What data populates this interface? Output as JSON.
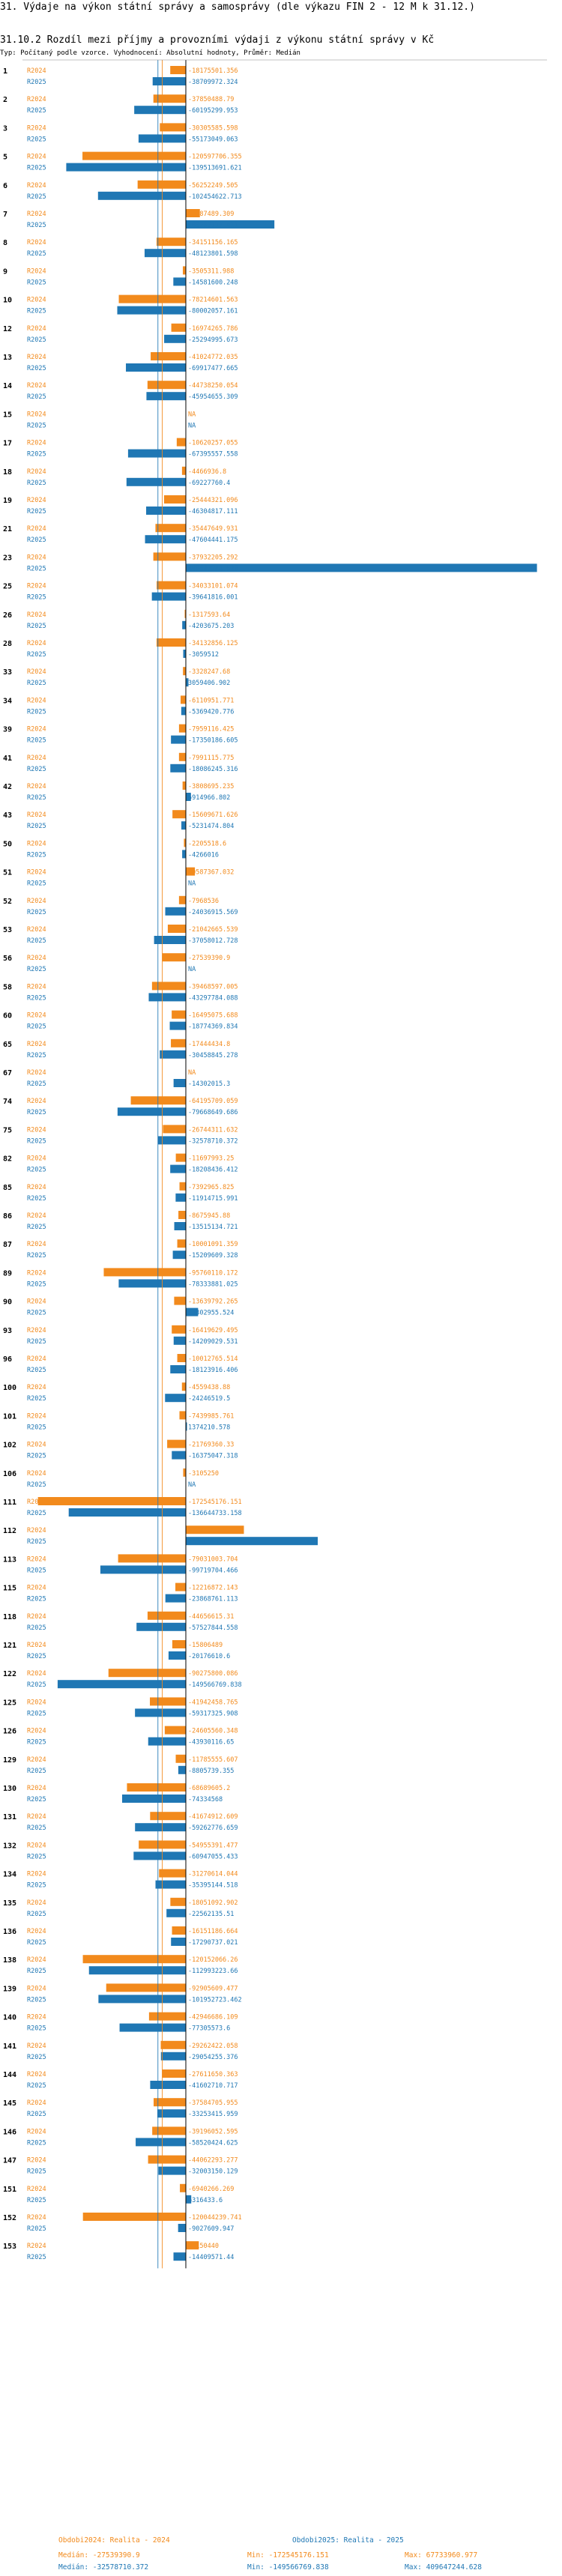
{
  "header": {
    "title": "31. Výdaje na výkon státní správy a samosprávy (dle výkazu FIN 2 - 12 M k 31.12.)",
    "subtitle": "31.10.2 Rozdíl mezi příjmy a provozními výdaji z výkonu státní správy v Kč",
    "note": "Typ: Počítaný podle vzorce. Vyhodnocení: Absolutní hodnoty, Průměr: Medián"
  },
  "colors": {
    "c2024": "#f28a1c",
    "c2025": "#1f77b4",
    "axis": "#000000",
    "avg24": "#f28a1c",
    "avg25": "#1f77b4"
  },
  "footer": {
    "legend_2024": "Obdobi2024: Realita - 2024",
    "legend_2025": "Obdobi2025: Realita - 2025",
    "median_2024": "Medián: -27539390.9",
    "median_2025": "Medián: -32578710.372",
    "min_2024": "Min: -172545176.151",
    "min_2025": "Min: -149566769.838",
    "max_2024": "Max: 67733960.977",
    "max_2025": "Max: 409647244.628"
  },
  "chart_data": {
    "type": "bar",
    "orientation": "horizontal",
    "title": "31.10.2 Rozdíl mezi příjmy a provozními výdaji z výkonu státní správy v Kč",
    "xlim": [
      -175000000,
      410000000
    ],
    "median_2024": -27539390.9,
    "median_2025": -32578710.372,
    "series_names": [
      "R2024",
      "R2025"
    ],
    "groups": [
      {
        "id": "1",
        "v2024": "-18175501.356",
        "v2025": "-38709972.324"
      },
      {
        "id": "2",
        "v2024": "-37850488.79",
        "v2025": "-60195299.953"
      },
      {
        "id": "3",
        "v2024": "-30305585.598",
        "v2025": "-55173049.063"
      },
      {
        "id": "5",
        "v2024": "-120597706.355",
        "v2025": "-139513691.621"
      },
      {
        "id": "6",
        "v2024": "-56252249.505",
        "v2025": "-102454622.713"
      },
      {
        "id": "7",
        "v2024": "16387489.309",
        "v2025": "103297717.411"
      },
      {
        "id": "8",
        "v2024": "-34151156.165",
        "v2025": "-48123801.598"
      },
      {
        "id": "9",
        "v2024": "-3505311.988",
        "v2025": "-14581600.248"
      },
      {
        "id": "10",
        "v2024": "-78214601.563",
        "v2025": "-80002057.161"
      },
      {
        "id": "12",
        "v2024": "-16974265.786",
        "v2025": "-25294995.673"
      },
      {
        "id": "13",
        "v2024": "-41024772.035",
        "v2025": "-69917477.665"
      },
      {
        "id": "14",
        "v2024": "-44738250.054",
        "v2025": "-45954655.309"
      },
      {
        "id": "15",
        "v2024": "NA",
        "v2025": "NA"
      },
      {
        "id": "17",
        "v2024": "-10620257.055",
        "v2025": "-67395557.558"
      },
      {
        "id": "18",
        "v2024": "-4466936.8",
        "v2025": "-69227760.4"
      },
      {
        "id": "19",
        "v2024": "-25444321.096",
        "v2025": "-46304817.111"
      },
      {
        "id": "21",
        "v2024": "-35447649.931",
        "v2025": "-47604441.175"
      },
      {
        "id": "23",
        "v2024": "-37932205.292",
        "v2025": "409647244.628"
      },
      {
        "id": "25",
        "v2024": "-34033101.074",
        "v2025": "-39641816.001"
      },
      {
        "id": "26",
        "v2024": "-1317593.64",
        "v2025": "-4203675.203"
      },
      {
        "id": "28",
        "v2024": "-34132856.125",
        "v2025": "-3059512"
      },
      {
        "id": "33",
        "v2024": "-3328247.68",
        "v2025": "3059406.902"
      },
      {
        "id": "34",
        "v2024": "-6110951.771",
        "v2025": "-5369420.776"
      },
      {
        "id": "39",
        "v2024": "-7959116.425",
        "v2025": "-17350186.605"
      },
      {
        "id": "41",
        "v2024": "-7991115.775",
        "v2025": "-18086245.316"
      },
      {
        "id": "42",
        "v2024": "-3808695.235",
        "v2025": "5914966.802"
      },
      {
        "id": "43",
        "v2024": "-15609671.626",
        "v2025": "-5231474.804"
      },
      {
        "id": "50",
        "v2024": "-2205518.6",
        "v2025": "-4266016"
      },
      {
        "id": "51",
        "v2024": "10587367.032",
        "v2025": "NA"
      },
      {
        "id": "52",
        "v2024": "-7968536",
        "v2025": "-24036915.569"
      },
      {
        "id": "53",
        "v2024": "-21042665.539",
        "v2025": "-37058012.728"
      },
      {
        "id": "56",
        "v2024": "-27539390.9",
        "v2025": "NA"
      },
      {
        "id": "58",
        "v2024": "-39468597.005",
        "v2025": "-43297784.088"
      },
      {
        "id": "60",
        "v2024": "-16495075.688",
        "v2025": "-18774369.834"
      },
      {
        "id": "65",
        "v2024": "-17444434.8",
        "v2025": "-30458845.278"
      },
      {
        "id": "67",
        "v2024": "NA",
        "v2025": "-14302015.3"
      },
      {
        "id": "74",
        "v2024": "-64195709.059",
        "v2025": "-79668649.686"
      },
      {
        "id": "75",
        "v2024": "-26744311.632",
        "v2025": "-32578710.372"
      },
      {
        "id": "82",
        "v2024": "-11697993.25",
        "v2025": "-18208436.412"
      },
      {
        "id": "85",
        "v2024": "-7392965.825",
        "v2025": "-11914715.991"
      },
      {
        "id": "86",
        "v2024": "-8675945.88",
        "v2025": "-13515134.721"
      },
      {
        "id": "87",
        "v2024": "-10001091.359",
        "v2025": "-15209609.328"
      },
      {
        "id": "89",
        "v2024": "-95760110.172",
        "v2025": "-78333881.025"
      },
      {
        "id": "90",
        "v2024": "-13639792.265",
        "v2025": "14302955.524"
      },
      {
        "id": "93",
        "v2024": "-16419629.495",
        "v2025": "-14209029.531"
      },
      {
        "id": "96",
        "v2024": "-10012765.514",
        "v2025": "-18123916.406"
      },
      {
        "id": "100",
        "v2024": "-4559438.88",
        "v2025": "-24246519.5"
      },
      {
        "id": "101",
        "v2024": "-7439985.761",
        "v2025": "1374210.578"
      },
      {
        "id": "102",
        "v2024": "-21769360.33",
        "v2025": "-16375047.318"
      },
      {
        "id": "106",
        "v2024": "-3105250",
        "v2025": "NA"
      },
      {
        "id": "111",
        "v2024": "-172545176.151",
        "v2025": "-136644733.158"
      },
      {
        "id": "112",
        "v2024": "67733960.977",
        "v2025": "153906619"
      },
      {
        "id": "113",
        "v2024": "-79031003.704",
        "v2025": "-99719704.466"
      },
      {
        "id": "115",
        "v2024": "-12216872.143",
        "v2025": "-23868761.113"
      },
      {
        "id": "118",
        "v2024": "-44656615.31",
        "v2025": "-57527844.558"
      },
      {
        "id": "121",
        "v2024": "-15806489",
        "v2025": "-20176610.6"
      },
      {
        "id": "122",
        "v2024": "-90275800.086",
        "v2025": "-149566769.838"
      },
      {
        "id": "125",
        "v2024": "-41942458.765",
        "v2025": "-59317325.908"
      },
      {
        "id": "126",
        "v2024": "-24605560.348",
        "v2025": "-43930116.65"
      },
      {
        "id": "129",
        "v2024": "-11785555.607",
        "v2025": "-8805739.355"
      },
      {
        "id": "130",
        "v2024": "-68689605.2",
        "v2025": "-74334568"
      },
      {
        "id": "131",
        "v2024": "-41674912.609",
        "v2025": "-59262776.659"
      },
      {
        "id": "132",
        "v2024": "-54955391.477",
        "v2025": "-60947055.433"
      },
      {
        "id": "134",
        "v2024": "-31270614.044",
        "v2025": "-35395144.518"
      },
      {
        "id": "135",
        "v2024": "-18051092.902",
        "v2025": "-22562135.51"
      },
      {
        "id": "136",
        "v2024": "-16151186.664",
        "v2025": "-17290737.021"
      },
      {
        "id": "138",
        "v2024": "-120152066.26",
        "v2025": "-112993223.66"
      },
      {
        "id": "139",
        "v2024": "-92905609.477",
        "v2025": "-101952723.462"
      },
      {
        "id": "140",
        "v2024": "-42946686.109",
        "v2025": "-77305573.6"
      },
      {
        "id": "141",
        "v2024": "-29262422.058",
        "v2025": "-29054255.376"
      },
      {
        "id": "144",
        "v2024": "-27611650.363",
        "v2025": "-41602710.717"
      },
      {
        "id": "145",
        "v2024": "-37584705.955",
        "v2025": "-33253415.959"
      },
      {
        "id": "146",
        "v2024": "-39196052.595",
        "v2025": "-58520424.625"
      },
      {
        "id": "147",
        "v2024": "-44062293.277",
        "v2025": "-32003150.129"
      },
      {
        "id": "151",
        "v2024": "-6940266.269",
        "v2025": "6316433.6"
      },
      {
        "id": "152",
        "v2024": "-120044239.741",
        "v2025": "-9027609.947"
      },
      {
        "id": "153",
        "v2024": "15150440",
        "v2025": "-14409571.44"
      }
    ]
  }
}
